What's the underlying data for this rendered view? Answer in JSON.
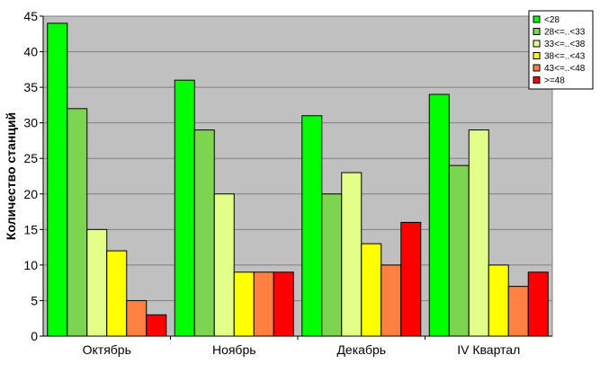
{
  "chart_data": {
    "type": "bar",
    "title": "",
    "xlabel": "",
    "ylabel": "Количество станций",
    "ylim": [
      0,
      45
    ],
    "yticks": [
      0,
      5,
      10,
      15,
      20,
      25,
      30,
      35,
      40,
      45
    ],
    "grid": true,
    "legend_position": "top-right",
    "plot_background": "#c0c0c0",
    "categories": [
      "Октябрь",
      "Ноябрь",
      "Декабрь",
      "IV Квартал"
    ],
    "series": [
      {
        "name": "<28",
        "color": "#00ff00",
        "values": [
          44,
          36,
          31,
          34
        ]
      },
      {
        "name": "28<=..<33",
        "color": "#7dd450",
        "values": [
          32,
          29,
          20,
          24
        ]
      },
      {
        "name": "33<=..<38",
        "color": "#e2ff8a",
        "values": [
          15,
          20,
          23,
          29
        ]
      },
      {
        "name": "38<=..<43",
        "color": "#ffff00",
        "values": [
          12,
          9,
          13,
          10
        ]
      },
      {
        "name": "43<=..<48",
        "color": "#ff8040",
        "values": [
          5,
          9,
          10,
          7
        ]
      },
      {
        "name": ">=48",
        "color": "#ff0000",
        "values": [
          3,
          9,
          16,
          9
        ]
      }
    ]
  }
}
